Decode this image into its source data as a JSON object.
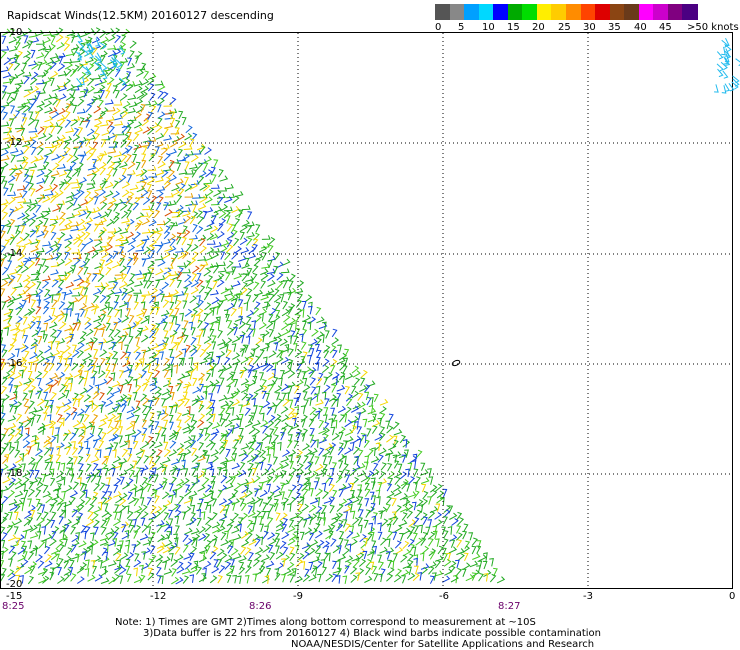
{
  "title": "Rapidscat Winds(12.5KM) 20160127 descending",
  "legend": {
    "labels": [
      "0",
      "5",
      "10",
      "15",
      "20",
      "25",
      "30",
      "35",
      "40",
      "45",
      ">50 knots"
    ],
    "colors": [
      "#555555",
      "#888888",
      "#00a0ff",
      "#00d8ff",
      "#0000ff",
      "#00aa00",
      "#00dd00",
      "#ffee00",
      "#ffcc00",
      "#ff8c00",
      "#ff4400",
      "#dd0000",
      "#8b4513",
      "#6a3a1a",
      "#ff00ff",
      "#cc00cc",
      "#800080",
      "#4b0082"
    ]
  },
  "axes": {
    "lat_labels": [
      "-10",
      "-12",
      "-14",
      "-16",
      "-18",
      "-20"
    ],
    "lon_labels": [
      "-15",
      "-12",
      "-9",
      "-6",
      "-3",
      "0"
    ],
    "time_labels": [
      "8:25",
      "8:26",
      "8:27"
    ]
  },
  "notes": {
    "line1": "Note: 1) Times are GMT 2)Times along bottom correspond to measurement at ~10S",
    "line2": "3)Data buffer is 22 hrs from 20160127 4) Black wind barbs indicate possible contamination",
    "line3": "NOAA/NESDIS/Center for Satellite Applications and Research"
  },
  "island_icon": "island-outline-icon"
}
